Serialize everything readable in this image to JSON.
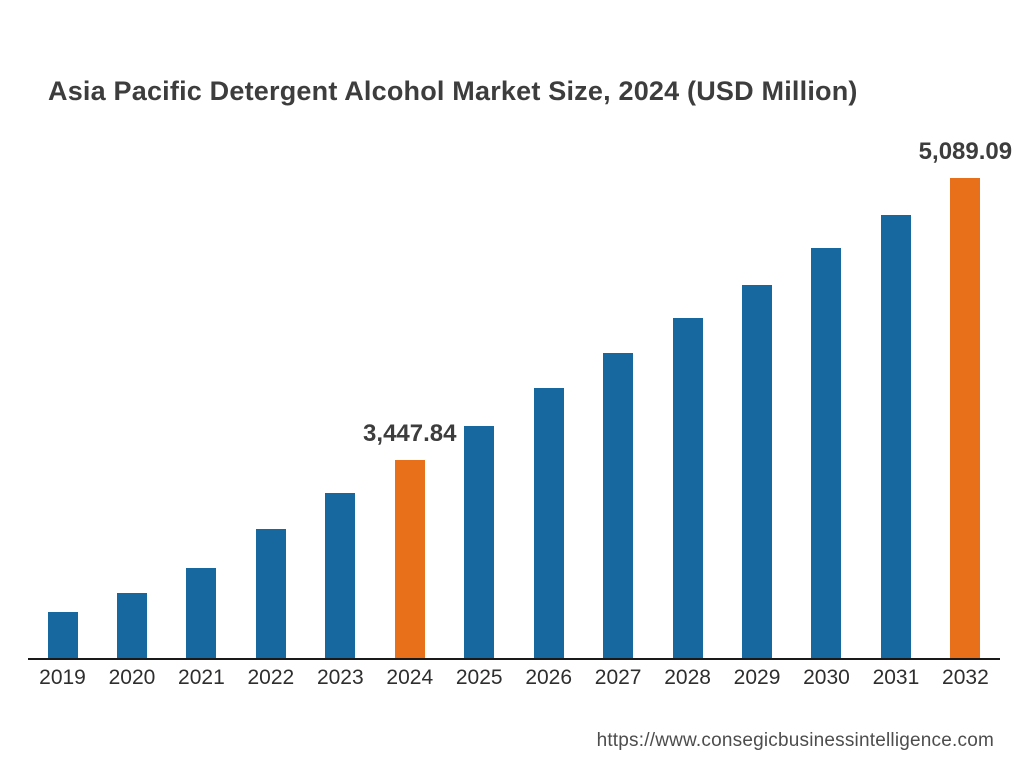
{
  "title": "Asia Pacific Detergent Alcohol Market Size, 2024 (USD Million)",
  "footer": {
    "url": "https://www.consegicbusinessintelligence.com"
  },
  "colors": {
    "bar_default": "#16689E",
    "bar_highlight": "#E8701A",
    "axis": "#1a1a1a",
    "title_text": "#3d3d3d",
    "tick_text": "#2e2e2e",
    "url_text": "#4d4d4d"
  },
  "chart_data": {
    "type": "bar",
    "title": "Asia Pacific Detergent Alcohol Market Size, 2024 (USD Million)",
    "xlabel": "",
    "ylabel": "USD Million",
    "categories": [
      "2019",
      "2020",
      "2021",
      "2022",
      "2023",
      "2024",
      "2025",
      "2026",
      "2027",
      "2028",
      "2029",
      "2030",
      "2031",
      "2032"
    ],
    "values": [
      2565,
      2680,
      2825,
      3050,
      3260,
      3447.84,
      3650,
      3870,
      4075,
      4275,
      4465,
      4685,
      4875,
      5089.09
    ],
    "highlight_categories": [
      "2024",
      "2032"
    ],
    "data_labels": {
      "2024": "3,447.84",
      "2032": "5,089.09"
    },
    "axis_baseline_value": 2300,
    "ymax": 5089.09,
    "grid": false,
    "legend": "none",
    "note": "Only 2024 and 2032 values are labeled in the source image; other values are estimated from bar heights. Bars do not start at zero (truncated baseline)."
  }
}
